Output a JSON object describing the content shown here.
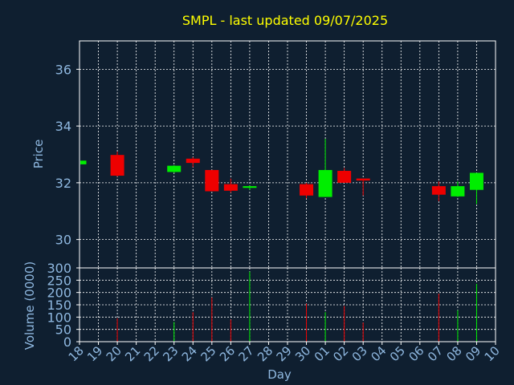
{
  "chart_data": {
    "type": "candlestick",
    "title": "SMPL - last updated 09/07/2025",
    "xlabel": "Day",
    "price_ylabel": "Price",
    "volume_ylabel": "Volume (0000)",
    "grid": true,
    "price_ylim": [
      29.0,
      37.0
    ],
    "price_yticks": [
      30,
      32,
      34,
      36
    ],
    "volume_ylim": [
      0,
      300
    ],
    "volume_yticks": [
      0,
      50,
      100,
      150,
      200,
      250,
      300
    ],
    "x_tick_labels": [
      "18",
      "19",
      "20",
      "21",
      "22",
      "23",
      "24",
      "25",
      "26",
      "27",
      "28",
      "29",
      "30",
      "01",
      "02",
      "03",
      "04",
      "05",
      "06",
      "07",
      "08",
      "09",
      "10"
    ],
    "candles": [
      {
        "day": "18",
        "open": 32.65,
        "high": 32.8,
        "low": 32.6,
        "close": 32.78,
        "volume": 0
      },
      {
        "day": "20",
        "open": 32.98,
        "high": 33.1,
        "low": 32.22,
        "close": 32.25,
        "volume": 95
      },
      {
        "day": "23",
        "open": 32.38,
        "high": 32.62,
        "low": 32.35,
        "close": 32.6,
        "volume": 80
      },
      {
        "day": "24",
        "open": 32.85,
        "high": 32.9,
        "low": 32.55,
        "close": 32.7,
        "volume": 120
      },
      {
        "day": "25",
        "open": 32.45,
        "high": 32.45,
        "low": 31.7,
        "close": 31.7,
        "volume": 180
      },
      {
        "day": "26",
        "open": 31.95,
        "high": 32.15,
        "low": 31.65,
        "close": 31.72,
        "volume": 90
      },
      {
        "day": "27",
        "open": 31.82,
        "high": 31.9,
        "low": 31.75,
        "close": 31.88,
        "volume": 285
      },
      {
        "day": "30",
        "open": 31.95,
        "high": 32.0,
        "low": 31.45,
        "close": 31.55,
        "volume": 155
      },
      {
        "day": "01",
        "open": 31.5,
        "high": 33.55,
        "low": 31.5,
        "close": 32.45,
        "volume": 120
      },
      {
        "day": "02",
        "open": 32.42,
        "high": 32.52,
        "low": 32.0,
        "close": 32.0,
        "volume": 145
      },
      {
        "day": "03",
        "open": 32.15,
        "high": 32.15,
        "low": 31.55,
        "close": 32.08,
        "volume": 78
      },
      {
        "day": "07",
        "open": 31.88,
        "high": 32.05,
        "low": 31.35,
        "close": 31.58,
        "volume": 195
      },
      {
        "day": "08",
        "open": 31.52,
        "high": 32.05,
        "low": 31.5,
        "close": 31.88,
        "volume": 128
      },
      {
        "day": "09",
        "open": 31.75,
        "high": 32.35,
        "low": 31.25,
        "close": 32.35,
        "volume": 235
      }
    ]
  },
  "colors": {
    "background": "#0f1f30",
    "axis": "#ffffff",
    "grid": "#ffffff",
    "tick_text": "#8fb8e0",
    "title": "#ffff00",
    "label": "#8fb8e0",
    "up": "#00ee00",
    "down": "#ee0000"
  }
}
